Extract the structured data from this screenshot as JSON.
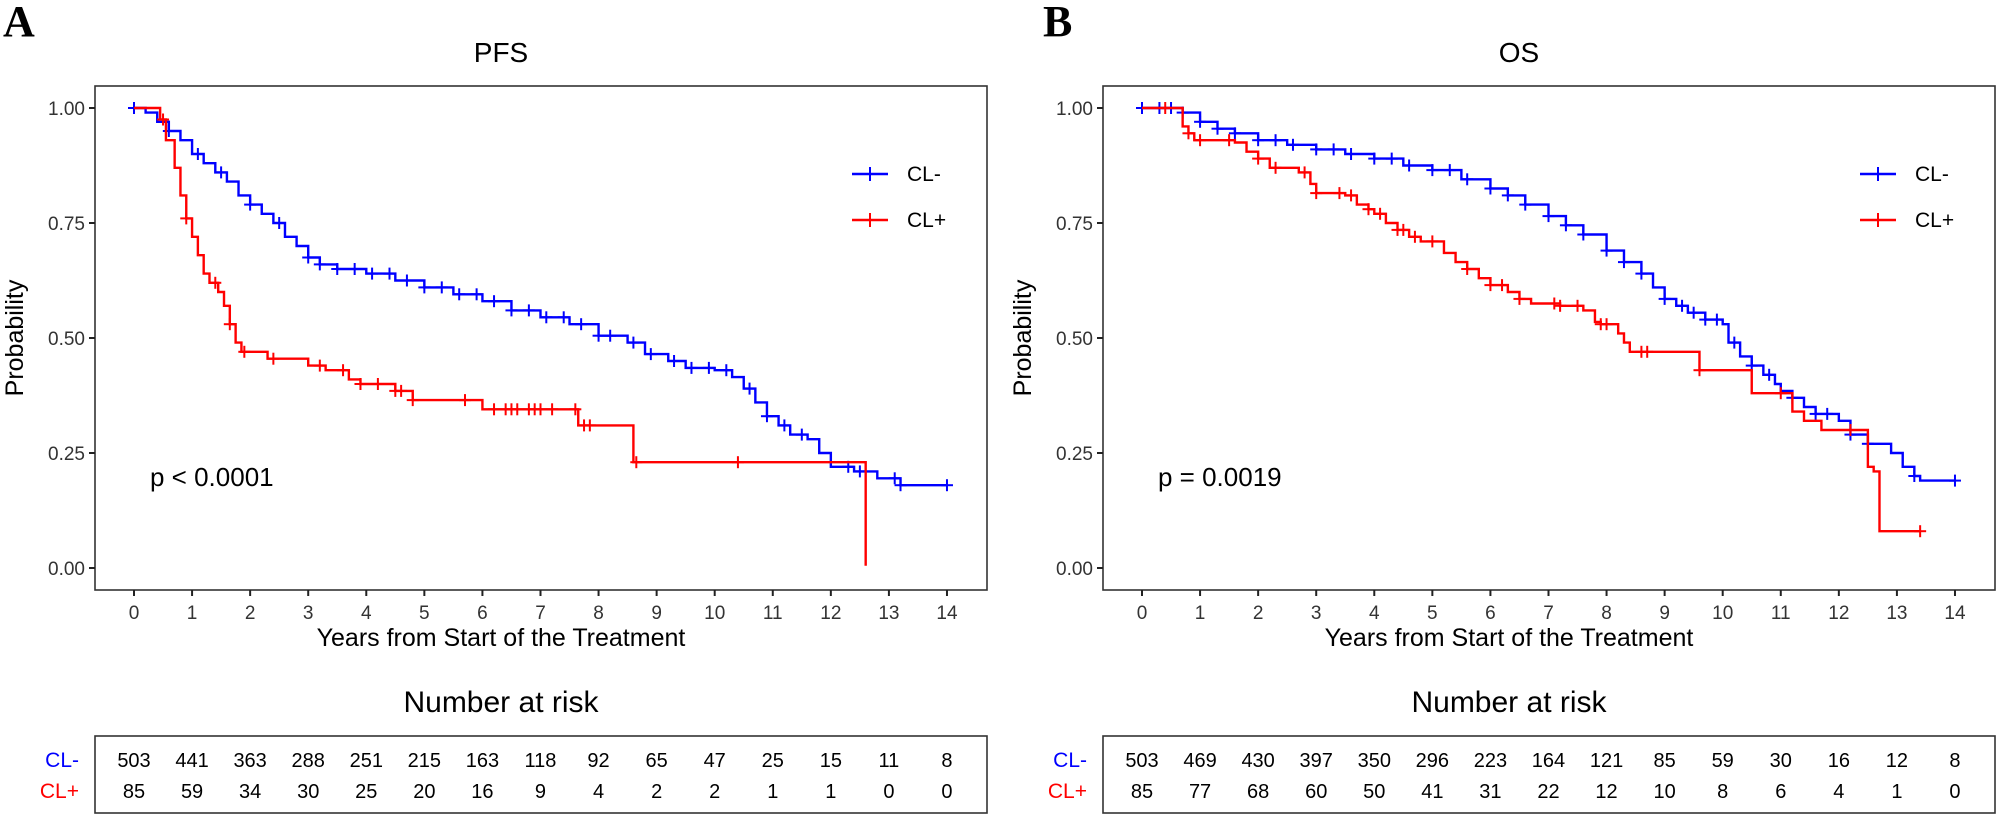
{
  "chart_data": [
    {
      "type": "line",
      "subtype": "kaplan-meier",
      "panel_letter": "A",
      "title": "PFS",
      "xlabel": "Years from Start of the Treatment",
      "ylabel": "Probability",
      "xlim": [
        0,
        14
      ],
      "ylim": [
        0,
        1
      ],
      "x_ticks": [
        0,
        1,
        2,
        3,
        4,
        5,
        6,
        7,
        8,
        9,
        10,
        11,
        12,
        13,
        14
      ],
      "x_tick_labels": [
        "0",
        "1",
        "2",
        "3",
        "4",
        "5",
        "6",
        "7",
        "8",
        "9",
        "10",
        "11",
        "12",
        "13",
        "14"
      ],
      "y_ticks": [
        0,
        0.25,
        0.5,
        0.75,
        1.0
      ],
      "y_tick_labels": [
        "0.00",
        "0.25",
        "0.50",
        "0.75",
        "1.00"
      ],
      "annotation": "p < 0.0001",
      "legend_position": "top-right",
      "grid": false,
      "series": [
        {
          "name": "CL-",
          "color": "#0000ff",
          "steps": [
            [
              0,
              1.0
            ],
            [
              0.2,
              0.99
            ],
            [
              0.4,
              0.97
            ],
            [
              0.6,
              0.95
            ],
            [
              0.8,
              0.93
            ],
            [
              1.0,
              0.9
            ],
            [
              1.2,
              0.88
            ],
            [
              1.4,
              0.86
            ],
            [
              1.6,
              0.84
            ],
            [
              1.8,
              0.81
            ],
            [
              2.0,
              0.79
            ],
            [
              2.2,
              0.77
            ],
            [
              2.4,
              0.75
            ],
            [
              2.6,
              0.72
            ],
            [
              2.8,
              0.7
            ],
            [
              3.0,
              0.675
            ],
            [
              3.2,
              0.66
            ],
            [
              3.5,
              0.65
            ],
            [
              4.0,
              0.64
            ],
            [
              4.5,
              0.625
            ],
            [
              5.0,
              0.61
            ],
            [
              5.5,
              0.595
            ],
            [
              6.0,
              0.58
            ],
            [
              6.5,
              0.56
            ],
            [
              7.0,
              0.545
            ],
            [
              7.5,
              0.53
            ],
            [
              8.0,
              0.505
            ],
            [
              8.5,
              0.49
            ],
            [
              8.8,
              0.465
            ],
            [
              9.2,
              0.45
            ],
            [
              9.5,
              0.435
            ],
            [
              10.0,
              0.43
            ],
            [
              10.3,
              0.415
            ],
            [
              10.5,
              0.39
            ],
            [
              10.7,
              0.36
            ],
            [
              10.9,
              0.33
            ],
            [
              11.1,
              0.31
            ],
            [
              11.3,
              0.29
            ],
            [
              11.6,
              0.28
            ],
            [
              11.8,
              0.25
            ],
            [
              12.0,
              0.22
            ],
            [
              12.4,
              0.21
            ],
            [
              12.8,
              0.195
            ],
            [
              13.2,
              0.18
            ],
            [
              14.0,
              0.18
            ]
          ],
          "censor_x": [
            0,
            0.6,
            1.1,
            1.5,
            2.0,
            2.5,
            3.0,
            3.2,
            3.5,
            3.8,
            4.1,
            4.4,
            4.7,
            5.0,
            5.3,
            5.6,
            5.9,
            6.2,
            6.5,
            6.8,
            7.1,
            7.4,
            7.7,
            8.0,
            8.2,
            8.6,
            8.9,
            9.3,
            9.6,
            9.9,
            10.2,
            10.6,
            10.9,
            11.2,
            11.5,
            12.3,
            12.5,
            13.1,
            13.2,
            14.0
          ]
        },
        {
          "name": "CL+",
          "color": "#ff0000",
          "steps": [
            [
              0,
              1.0
            ],
            [
              0.35,
              1.0
            ],
            [
              0.45,
              0.975
            ],
            [
              0.55,
              0.93
            ],
            [
              0.7,
              0.87
            ],
            [
              0.8,
              0.81
            ],
            [
              0.9,
              0.76
            ],
            [
              1.0,
              0.72
            ],
            [
              1.1,
              0.68
            ],
            [
              1.2,
              0.64
            ],
            [
              1.3,
              0.62
            ],
            [
              1.45,
              0.6
            ],
            [
              1.55,
              0.57
            ],
            [
              1.65,
              0.53
            ],
            [
              1.75,
              0.49
            ],
            [
              1.85,
              0.47
            ],
            [
              2.3,
              0.455
            ],
            [
              3.0,
              0.44
            ],
            [
              3.3,
              0.43
            ],
            [
              3.7,
              0.41
            ],
            [
              3.9,
              0.4
            ],
            [
              4.5,
              0.385
            ],
            [
              4.8,
              0.365
            ],
            [
              6.0,
              0.345
            ],
            [
              7.5,
              0.345
            ],
            [
              7.65,
              0.31
            ],
            [
              8.5,
              0.31
            ],
            [
              8.6,
              0.23
            ],
            [
              12.6,
              0.23
            ],
            [
              12.6,
              0.005
            ]
          ],
          "censor_x": [
            0.5,
            0.9,
            1.4,
            1.65,
            1.9,
            2.4,
            3.2,
            3.6,
            3.9,
            4.2,
            4.5,
            4.6,
            4.8,
            5.7,
            6.2,
            6.4,
            6.5,
            6.6,
            6.8,
            6.9,
            7.0,
            7.2,
            7.6,
            7.75,
            7.85,
            8.65,
            10.4
          ]
        }
      ],
      "risk_table": {
        "title": "Number at risk",
        "times": [
          0,
          1,
          2,
          3,
          4,
          5,
          6,
          7,
          8,
          9,
          10,
          11,
          12,
          13,
          14
        ],
        "rows": [
          {
            "label": "CL-",
            "color": "#0000ff",
            "values": [
              503,
              441,
              363,
              288,
              251,
              215,
              163,
              118,
              92,
              65,
              47,
              25,
              15,
              11,
              8
            ]
          },
          {
            "label": "CL+",
            "color": "#ff0000",
            "values": [
              85,
              59,
              34,
              30,
              25,
              20,
              16,
              9,
              4,
              2,
              2,
              1,
              1,
              0,
              0
            ]
          }
        ]
      }
    },
    {
      "type": "line",
      "subtype": "kaplan-meier",
      "panel_letter": "B",
      "title": "OS",
      "xlabel": "Years from Start of the Treatment",
      "ylabel": "Probability",
      "xlim": [
        0,
        14
      ],
      "ylim": [
        0,
        1
      ],
      "x_ticks": [
        0,
        1,
        2,
        3,
        4,
        5,
        6,
        7,
        8,
        9,
        10,
        11,
        12,
        13,
        14
      ],
      "x_tick_labels": [
        "0",
        "1",
        "2",
        "3",
        "4",
        "5",
        "6",
        "7",
        "8",
        "9",
        "10",
        "11",
        "12",
        "13",
        "14"
      ],
      "y_ticks": [
        0,
        0.25,
        0.5,
        0.75,
        1.0
      ],
      "y_tick_labels": [
        "0.00",
        "0.25",
        "0.50",
        "0.75",
        "1.00"
      ],
      "annotation": "p = 0.0019",
      "legend_position": "top-right",
      "grid": false,
      "series": [
        {
          "name": "CL-",
          "color": "#0000ff",
          "steps": [
            [
              0,
              1.0
            ],
            [
              0.5,
              1.0
            ],
            [
              0.7,
              0.99
            ],
            [
              1.0,
              0.97
            ],
            [
              1.3,
              0.955
            ],
            [
              1.6,
              0.945
            ],
            [
              2.0,
              0.93
            ],
            [
              2.5,
              0.92
            ],
            [
              3.0,
              0.91
            ],
            [
              3.5,
              0.9
            ],
            [
              4.0,
              0.89
            ],
            [
              4.5,
              0.875
            ],
            [
              5.0,
              0.865
            ],
            [
              5.5,
              0.845
            ],
            [
              6.0,
              0.825
            ],
            [
              6.3,
              0.81
            ],
            [
              6.6,
              0.79
            ],
            [
              7.0,
              0.765
            ],
            [
              7.3,
              0.745
            ],
            [
              7.6,
              0.725
            ],
            [
              8.0,
              0.69
            ],
            [
              8.3,
              0.665
            ],
            [
              8.6,
              0.64
            ],
            [
              8.8,
              0.61
            ],
            [
              9.0,
              0.585
            ],
            [
              9.2,
              0.57
            ],
            [
              9.4,
              0.555
            ],
            [
              9.7,
              0.54
            ],
            [
              10.0,
              0.53
            ],
            [
              10.1,
              0.49
            ],
            [
              10.3,
              0.46
            ],
            [
              10.5,
              0.44
            ],
            [
              10.7,
              0.42
            ],
            [
              10.9,
              0.4
            ],
            [
              11.0,
              0.385
            ],
            [
              11.2,
              0.37
            ],
            [
              11.4,
              0.35
            ],
            [
              11.6,
              0.335
            ],
            [
              12.0,
              0.32
            ],
            [
              12.2,
              0.29
            ],
            [
              12.5,
              0.27
            ],
            [
              12.9,
              0.25
            ],
            [
              13.1,
              0.22
            ],
            [
              13.3,
              0.2
            ],
            [
              13.4,
              0.19
            ],
            [
              14.0,
              0.19
            ]
          ],
          "censor_x": [
            0,
            0.3,
            0.5,
            0.7,
            1.0,
            1.3,
            1.6,
            2.0,
            2.3,
            2.6,
            3.0,
            3.3,
            3.6,
            4.0,
            4.3,
            4.6,
            5.0,
            5.3,
            5.6,
            6.0,
            6.3,
            6.6,
            7.0,
            7.3,
            7.6,
            8.0,
            8.3,
            8.6,
            9.0,
            9.3,
            9.5,
            9.7,
            9.9,
            10.2,
            10.5,
            10.8,
            11.2,
            11.6,
            11.8,
            12.2,
            12.5,
            13.3,
            14.0
          ]
        },
        {
          "name": "CL+",
          "color": "#ff0000",
          "steps": [
            [
              0,
              1.0
            ],
            [
              0.6,
              1.0
            ],
            [
              0.7,
              0.96
            ],
            [
              0.8,
              0.945
            ],
            [
              0.9,
              0.93
            ],
            [
              1.6,
              0.925
            ],
            [
              1.8,
              0.905
            ],
            [
              2.0,
              0.89
            ],
            [
              2.2,
              0.87
            ],
            [
              2.7,
              0.86
            ],
            [
              2.9,
              0.835
            ],
            [
              3.0,
              0.815
            ],
            [
              3.5,
              0.81
            ],
            [
              3.7,
              0.79
            ],
            [
              3.9,
              0.78
            ],
            [
              4.0,
              0.77
            ],
            [
              4.2,
              0.75
            ],
            [
              4.4,
              0.735
            ],
            [
              4.6,
              0.72
            ],
            [
              4.8,
              0.71
            ],
            [
              5.0,
              0.71
            ],
            [
              5.2,
              0.685
            ],
            [
              5.4,
              0.665
            ],
            [
              5.6,
              0.65
            ],
            [
              5.8,
              0.63
            ],
            [
              6.0,
              0.615
            ],
            [
              6.3,
              0.6
            ],
            [
              6.5,
              0.585
            ],
            [
              6.7,
              0.575
            ],
            [
              7.2,
              0.57
            ],
            [
              7.5,
              0.57
            ],
            [
              7.6,
              0.56
            ],
            [
              7.8,
              0.535
            ],
            [
              7.9,
              0.53
            ],
            [
              8.2,
              0.51
            ],
            [
              8.3,
              0.49
            ],
            [
              8.4,
              0.47
            ],
            [
              9.0,
              0.47
            ],
            [
              9.5,
              0.47
            ],
            [
              9.6,
              0.43
            ],
            [
              10.4,
              0.43
            ],
            [
              10.5,
              0.38
            ],
            [
              11.2,
              0.38
            ],
            [
              11.2,
              0.34
            ],
            [
              11.4,
              0.32
            ],
            [
              11.7,
              0.3
            ],
            [
              12.3,
              0.3
            ],
            [
              12.5,
              0.22
            ],
            [
              12.6,
              0.21
            ],
            [
              12.7,
              0.08
            ],
            [
              13.4,
              0.08
            ]
          ],
          "censor_x": [
            0.4,
            0.8,
            1.0,
            1.5,
            2.0,
            2.3,
            2.8,
            3.0,
            3.4,
            3.6,
            3.9,
            4.1,
            4.4,
            4.5,
            4.7,
            5.0,
            5.6,
            6.0,
            6.2,
            6.5,
            7.1,
            7.2,
            7.5,
            7.9,
            8.0,
            8.6,
            8.7,
            9.6,
            11.0,
            12.2,
            13.4
          ]
        }
      ],
      "risk_table": {
        "title": "Number at risk",
        "times": [
          0,
          1,
          2,
          3,
          4,
          5,
          6,
          7,
          8,
          9,
          10,
          11,
          12,
          13,
          14
        ],
        "rows": [
          {
            "label": "CL-",
            "color": "#0000ff",
            "values": [
              503,
              469,
              430,
              397,
              350,
              296,
              223,
              164,
              121,
              85,
              59,
              30,
              16,
              12,
              8
            ]
          },
          {
            "label": "CL+",
            "color": "#ff0000",
            "values": [
              85,
              77,
              68,
              60,
              50,
              41,
              31,
              22,
              12,
              10,
              8,
              6,
              4,
              1,
              0
            ]
          }
        ]
      }
    }
  ]
}
